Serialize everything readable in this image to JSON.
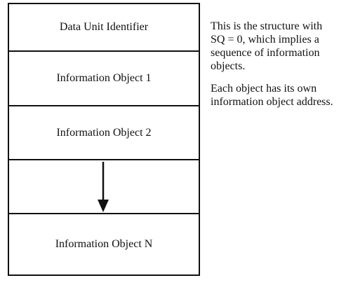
{
  "diagram": {
    "blocks": [
      {
        "label": "Data Unit Identifier"
      },
      {
        "label": "Information Object 1"
      },
      {
        "label": "Information Object 2"
      },
      {
        "label": ""
      },
      {
        "label": "Information Object N"
      }
    ],
    "arrow": "down-arrow",
    "notes": [
      "This is the structure with SQ = 0, which implies a sequence of information objects.",
      "Each object has its own information object address."
    ],
    "colors": {
      "line": "#111111",
      "background": "#ffffff",
      "text": "#111111"
    }
  }
}
